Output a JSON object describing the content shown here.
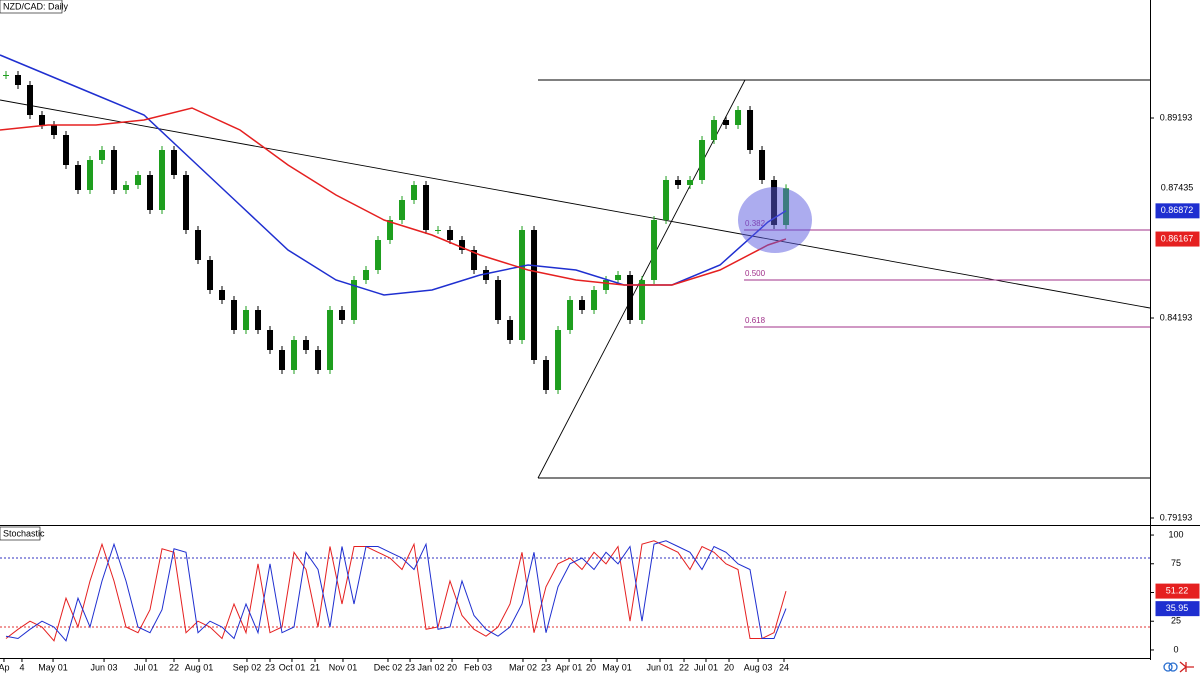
{
  "chart_data": [
    {
      "type": "candlestick",
      "title": "NZD/CAD: Daily",
      "x": [
        0.5,
        1.5,
        2.5,
        3.5,
        4.5,
        5.5,
        6.5,
        7.5,
        8.5,
        9.5,
        10.5,
        11.5,
        12.5,
        13.5,
        14.5,
        15.5,
        16.5,
        17.5,
        18.5,
        19.5,
        20.5,
        21.5,
        22.5,
        23.5,
        24.5,
        25.5,
        26.5,
        27.5,
        28.5,
        29.5,
        30.5,
        31.5,
        32.5,
        33.5,
        34.5,
        35.5,
        36.5,
        37.5,
        38.5,
        39.5,
        40.5,
        41.5,
        42.5,
        43.5,
        44.5,
        45.5,
        46.5,
        47.5,
        48.5,
        49.5,
        50.5,
        51.5,
        52.5,
        53.5,
        54.5,
        55.5,
        56.5,
        57.5,
        58.5,
        59.5,
        60.5,
        61.5,
        62.5,
        63.5,
        64.5,
        65.5
      ],
      "close": [
        0.90268,
        0.90018,
        0.89268,
        0.89018,
        0.88768,
        0.88018,
        0.87393,
        0.88143,
        0.88393,
        0.87393,
        0.87518,
        0.87768,
        0.86893,
        0.88393,
        0.87768,
        0.86393,
        0.85643,
        0.84893,
        0.84643,
        0.83893,
        0.84393,
        0.83893,
        0.83393,
        0.82893,
        0.83643,
        0.83393,
        0.82893,
        0.84393,
        0.84143,
        0.85143,
        0.85393,
        0.86143,
        0.86643,
        0.87143,
        0.87518,
        0.86393,
        0.86393,
        0.86143,
        0.85893,
        0.85393,
        0.85143,
        0.84143,
        0.83643,
        0.86393,
        0.83143,
        0.82393,
        0.83893,
        0.84643,
        0.84393,
        0.84893,
        0.85143,
        0.85268,
        0.84143,
        0.85143,
        0.86643,
        0.87643,
        0.87518,
        0.87643,
        0.88643,
        0.89143,
        0.89018,
        0.89393,
        0.88393,
        0.87643,
        0.86518,
        0.87435
      ],
      "up_color": "#1e9e1e",
      "down_color": "#000000",
      "series": [
        {
          "color": "#1f2fd0",
          "x": [
            0,
            4,
            8,
            12,
            16,
            20,
            24,
            28,
            32,
            36,
            40,
            44,
            48,
            52,
            56,
            60,
            64,
            65.5
          ],
          "values": [
            0.90768,
            0.90268,
            0.89768,
            0.89268,
            0.88143,
            0.87018,
            0.85893,
            0.85143,
            0.84768,
            0.84893,
            0.85268,
            0.85518,
            0.85393,
            0.85018,
            0.85018,
            0.85518,
            0.86593,
            0.86872
          ]
        },
        {
          "color": "#e52020",
          "x": [
            0,
            4,
            8,
            12,
            16,
            20,
            24,
            28,
            32,
            36,
            40,
            44,
            48,
            52,
            56,
            60,
            64,
            65.5
          ],
          "values": [
            0.88893,
            0.89018,
            0.89018,
            0.89143,
            0.89443,
            0.88893,
            0.88018,
            0.87268,
            0.86643,
            0.86268,
            0.85768,
            0.85393,
            0.85143,
            0.85018,
            0.85018,
            0.85393,
            0.86018,
            0.86167
          ]
        }
      ],
      "trendlines": [
        {
          "x": [
            0,
            95.83
          ],
          "values": [
            0.89643,
            0.84443
          ],
          "color": "#000000"
        },
        {
          "x": [
            44.83,
            62.08
          ],
          "values": [
            0.80193,
            0.90143
          ],
          "color": "#000000"
        },
        {
          "x": [
            44.83,
            95.83
          ],
          "values": [
            0.90143,
            0.90143
          ],
          "color": "#000000"
        },
        {
          "x": [
            44.83,
            95.83
          ],
          "values": [
            0.80193,
            0.80193
          ],
          "color": "#000000"
        }
      ],
      "fib_levels": [
        {
          "value": 0.86393,
          "label": "0.382"
        },
        {
          "value": 0.85143,
          "label": "0.500"
        },
        {
          "value": 0.83968,
          "label": "0.618"
        }
      ],
      "fib_x": [
        62,
        95.83
      ],
      "fib_color": "#a0308a",
      "highlight": {
        "x": 64.58,
        "y": 0.86643,
        "color": "#5a5ae0"
      },
      "xlim": [
        0,
        95.83
      ],
      "ylim": [
        0.79018,
        0.92143
      ],
      "yticks": [
        0.79193,
        0.84193,
        0.89193
      ],
      "badges": [
        {
          "value": 0.87435,
          "label": "0.87435",
          "color": "#ffffff",
          "text_color": "#000000"
        },
        {
          "value": 0.86872,
          "label": "0.86872",
          "color": "#1f2fd0",
          "text_color": "#ffffff"
        },
        {
          "value": 0.86167,
          "label": "0.86167",
          "color": "#e52020",
          "text_color": "#ffffff"
        }
      ]
    },
    {
      "type": "line",
      "title": "Stochastic",
      "x": [
        0.5,
        1.5,
        2.5,
        3.5,
        4.5,
        5.5,
        6.5,
        7.5,
        8.5,
        9.5,
        10.5,
        11.5,
        12.5,
        13.5,
        14.5,
        15.5,
        16.5,
        17.5,
        18.5,
        19.5,
        20.5,
        21.5,
        22.5,
        23.5,
        24.5,
        25.5,
        26.5,
        27.5,
        28.5,
        29.5,
        30.5,
        31.5,
        32.5,
        33.5,
        34.5,
        35.5,
        36.5,
        37.5,
        38.5,
        39.5,
        40.5,
        41.5,
        42.5,
        43.5,
        44.5,
        45.5,
        46.5,
        47.5,
        48.5,
        49.5,
        50.5,
        51.5,
        52.5,
        53.5,
        54.5,
        55.5,
        56.5,
        57.5,
        58.5,
        59.5,
        60.5,
        61.5,
        62.5,
        63.5,
        64.5,
        65.5
      ],
      "series": [
        {
          "color": "#e52020",
          "values": [
            10,
            18,
            25,
            20,
            8,
            45,
            20,
            60,
            92,
            60,
            20,
            15,
            35,
            88,
            85,
            15,
            25,
            20,
            10,
            40,
            15,
            75,
            15,
            20,
            85,
            70,
            20,
            90,
            40,
            90,
            90,
            85,
            80,
            70,
            92,
            18,
            20,
            60,
            30,
            18,
            12,
            20,
            40,
            85,
            15,
            55,
            75,
            80,
            70,
            85,
            75,
            90,
            25,
            92,
            95,
            90,
            85,
            70,
            90,
            85,
            75,
            70,
            10,
            10,
            15,
            51.22
          ]
        },
        {
          "color": "#1f2fd0",
          "values": [
            12,
            10,
            18,
            25,
            20,
            8,
            45,
            20,
            60,
            92,
            60,
            20,
            15,
            35,
            88,
            85,
            15,
            25,
            20,
            10,
            40,
            15,
            75,
            15,
            20,
            85,
            70,
            20,
            90,
            40,
            90,
            90,
            85,
            80,
            70,
            92,
            18,
            20,
            60,
            30,
            18,
            12,
            20,
            40,
            85,
            15,
            55,
            75,
            80,
            70,
            85,
            75,
            90,
            25,
            92,
            95,
            90,
            85,
            70,
            90,
            85,
            75,
            70,
            10,
            10,
            35.95
          ]
        }
      ],
      "levels": [
        {
          "value": 80,
          "color": "#3030c0"
        },
        {
          "value": 20,
          "color": "#e03030"
        }
      ],
      "xlim": [
        0,
        95.83
      ],
      "ylim": [
        -7,
        107
      ],
      "yticks": [
        0,
        25,
        50,
        75,
        100
      ],
      "badges": [
        {
          "value": 51.22,
          "label": "51.22",
          "color": "#e52020",
          "text_color": "#ffffff"
        },
        {
          "value": 35.95,
          "label": "35.95",
          "color": "#1f2fd0",
          "text_color": "#ffffff"
        }
      ],
      "xticks": [
        {
          "value": 0.33,
          "label": "Ap"
        },
        {
          "value": 1.83,
          "label": "4"
        },
        {
          "value": 4.42,
          "label": "May 01"
        },
        {
          "value": 8.67,
          "label": "Jun 03"
        },
        {
          "value": 12.17,
          "label": "Jul 01"
        },
        {
          "value": 14.5,
          "label": "22"
        },
        {
          "value": 16.58,
          "label": "Aug 01"
        },
        {
          "value": 20.58,
          "label": "Sep 02"
        },
        {
          "value": 22.5,
          "label": "23"
        },
        {
          "value": 24.33,
          "label": "Oct 01"
        },
        {
          "value": 26.25,
          "label": "21"
        },
        {
          "value": 28.58,
          "label": "Nov 01"
        },
        {
          "value": 32.33,
          "label": "Dec 02"
        },
        {
          "value": 34.17,
          "label": "23"
        },
        {
          "value": 35.92,
          "label": "Jan 02"
        },
        {
          "value": 37.67,
          "label": "20"
        },
        {
          "value": 39.83,
          "label": "Feb 03"
        },
        {
          "value": 43.58,
          "label": "Mar 02"
        },
        {
          "value": 45.5,
          "label": "23"
        },
        {
          "value": 47.42,
          "label": "Apr 01"
        },
        {
          "value": 49.25,
          "label": "20"
        },
        {
          "value": 51.42,
          "label": "May 01"
        },
        {
          "value": 55,
          "label": "Jun 01"
        },
        {
          "value": 57,
          "label": "22"
        },
        {
          "value": 58.83,
          "label": "Jul 01"
        },
        {
          "value": 60.75,
          "label": "20"
        },
        {
          "value": 63.17,
          "label": "Aug 03"
        },
        {
          "value": 65.33,
          "label": "24"
        }
      ]
    }
  ]
}
